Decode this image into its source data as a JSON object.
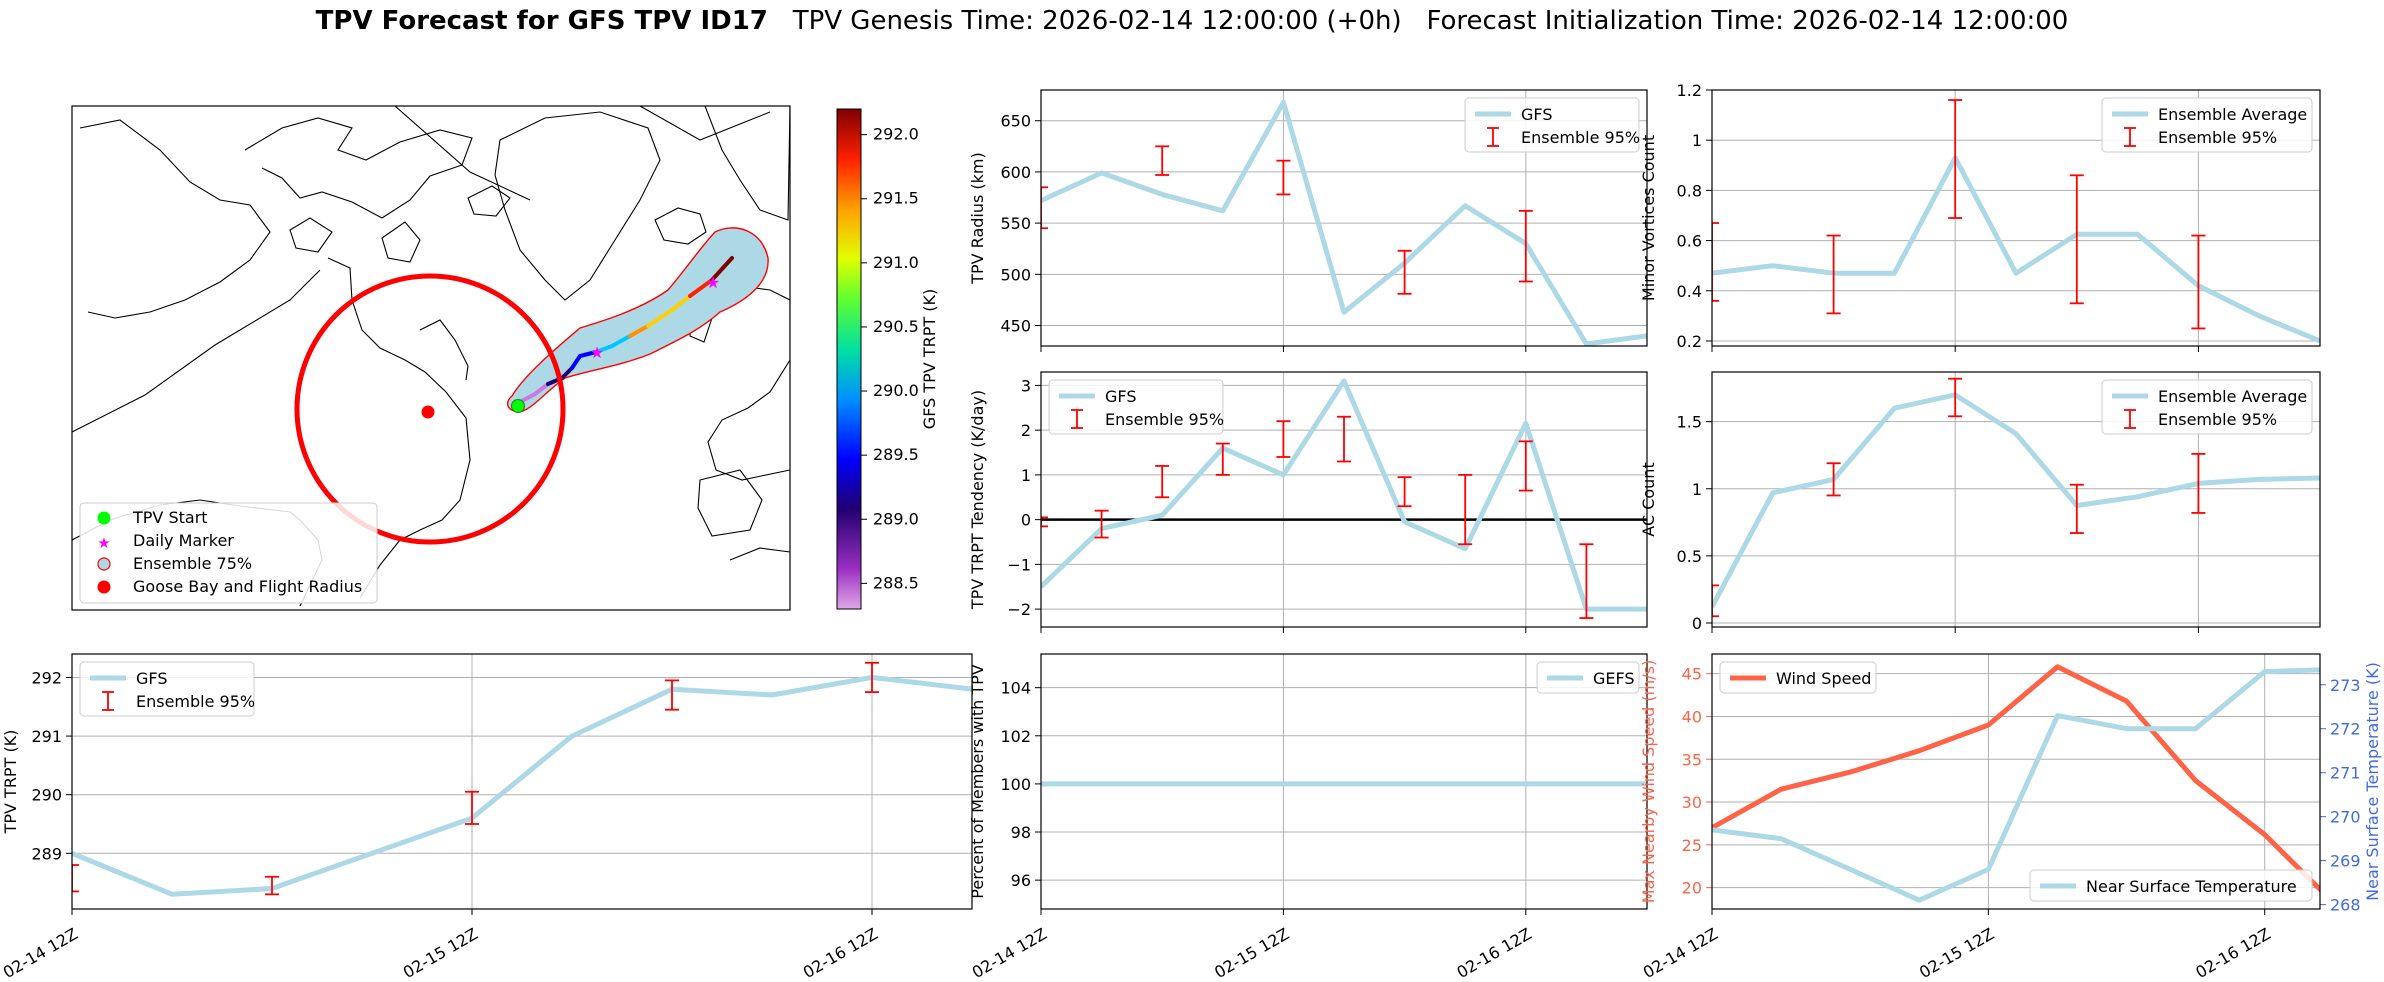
{
  "header": {
    "title_bold": "TPV Forecast for GFS TPV ID17",
    "genesis": "TPV Genesis Time: 2026-02-14 12:00:00 (+0h)",
    "init": "Forecast Initialization Time: 2026-02-14 12:00:00"
  },
  "colors": {
    "lightblue": "#add8e6",
    "red": "#ff0000",
    "tomato": "#ff6347",
    "royalblue": "#4169e1",
    "magenta": "#ff00ff",
    "lime": "#00ff00"
  },
  "map": {
    "legend": [
      "TPV Start",
      "Daily Marker",
      "Ensemble 75%",
      "Goose Bay and Flight Radius"
    ],
    "colorbar": {
      "label": "GFS TPV TRPT (K)",
      "min": 288.3,
      "max": 292.2,
      "ticks": [
        "288.5",
        "289.0",
        "289.5",
        "290.0",
        "290.5",
        "291.0",
        "291.5",
        "292.0"
      ]
    }
  },
  "x_tick_labels": [
    "02-14 12Z",
    "02-15 12Z",
    "02-16 12Z"
  ],
  "chart_data": [
    {
      "id": "radius",
      "type": "line",
      "ylabel": "TPV Radius (km)",
      "ylim": [
        430,
        680
      ],
      "yticks": [
        450,
        500,
        550,
        600,
        650
      ],
      "xticks": [
        0,
        4,
        8
      ],
      "show_xlabels": false,
      "xlim": [
        0,
        10
      ],
      "legend_pos": "top-right",
      "legend": [
        "GFS",
        "Ensemble 95%"
      ],
      "series": [
        {
          "name": "GFS",
          "color": "#add8e6",
          "x": [
            0,
            1,
            2,
            3,
            4,
            5,
            6,
            7,
            8,
            9,
            10
          ],
          "values": [
            572,
            599,
            578,
            562,
            668,
            463,
            511,
            567,
            530,
            432,
            440
          ]
        }
      ],
      "errorbars": [
        {
          "x": 0,
          "lo": 545,
          "hi": 585
        },
        {
          "x": 2,
          "lo": 597,
          "hi": 625
        },
        {
          "x": 4,
          "lo": 578,
          "hi": 611
        },
        {
          "x": 6,
          "lo": 481,
          "hi": 523
        },
        {
          "x": 8,
          "lo": 493,
          "hi": 562
        }
      ]
    },
    {
      "id": "minor",
      "type": "line",
      "ylabel": "Minor Vortices Count",
      "ylim": [
        0.18,
        1.2
      ],
      "yticks": [
        0.2,
        0.4,
        0.6,
        0.8,
        1.0,
        1.2
      ],
      "xticks": [
        0,
        4,
        8
      ],
      "show_xlabels": false,
      "xlim": [
        0,
        10
      ],
      "legend_pos": "top-right",
      "legend": [
        "Ensemble Average",
        "Ensemble 95%"
      ],
      "series": [
        {
          "name": "Ensemble Average",
          "color": "#add8e6",
          "x": [
            0,
            1,
            2,
            3,
            4,
            5,
            6,
            7,
            8,
            9,
            10
          ],
          "values": [
            0.47,
            0.5,
            0.47,
            0.47,
            0.93,
            0.47,
            0.625,
            0.625,
            0.42,
            0.3,
            0.2
          ]
        }
      ],
      "errorbars": [
        {
          "x": 0,
          "lo": 0.36,
          "hi": 0.67
        },
        {
          "x": 2,
          "lo": 0.31,
          "hi": 0.62
        },
        {
          "x": 4,
          "lo": 0.69,
          "hi": 1.16
        },
        {
          "x": 6,
          "lo": 0.35,
          "hi": 0.86
        },
        {
          "x": 8,
          "lo": 0.25,
          "hi": 0.62
        }
      ]
    },
    {
      "id": "tendency",
      "type": "line",
      "ylabel": "TPV TRPT Tendency (K/day)",
      "ylim": [
        -2.4,
        3.3
      ],
      "yticks": [
        -2,
        -1,
        0,
        1,
        2,
        3
      ],
      "xticks": [
        0,
        4,
        8
      ],
      "show_xlabels": false,
      "xlim": [
        0,
        10
      ],
      "zero_line": true,
      "legend_pos": "top-left",
      "legend": [
        "GFS",
        "Ensemble 95%"
      ],
      "series": [
        {
          "name": "GFS",
          "color": "#add8e6",
          "x": [
            0,
            1,
            2,
            3,
            4,
            5,
            6,
            7,
            8,
            9,
            10
          ],
          "values": [
            -1.5,
            -0.2,
            0.1,
            1.6,
            1.0,
            3.1,
            -0.05,
            -0.65,
            2.15,
            -2.0,
            -2.0
          ]
        }
      ],
      "errorbars": [
        {
          "x": 0,
          "lo": -0.15,
          "hi": 0.05
        },
        {
          "x": 1,
          "lo": -0.4,
          "hi": 0.2
        },
        {
          "x": 2,
          "lo": 0.5,
          "hi": 1.2
        },
        {
          "x": 3,
          "lo": 1.0,
          "hi": 1.7
        },
        {
          "x": 4,
          "lo": 1.4,
          "hi": 2.2
        },
        {
          "x": 5,
          "lo": 1.3,
          "hi": 2.3
        },
        {
          "x": 6,
          "lo": 0.3,
          "hi": 0.95
        },
        {
          "x": 7,
          "lo": -0.55,
          "hi": 1.0
        },
        {
          "x": 8,
          "lo": 0.65,
          "hi": 1.75
        },
        {
          "x": 9,
          "lo": -2.2,
          "hi": -0.55
        }
      ]
    },
    {
      "id": "ac",
      "type": "line",
      "ylabel": "AC Count",
      "ylim": [
        -0.03,
        1.87
      ],
      "yticks": [
        0.0,
        0.5,
        1.0,
        1.5
      ],
      "xticks": [
        0,
        4,
        8
      ],
      "show_xlabels": false,
      "xlim": [
        0,
        10
      ],
      "legend_pos": "top-right",
      "legend": [
        "Ensemble Average",
        "Ensemble 95%"
      ],
      "series": [
        {
          "name": "Ensemble Average",
          "color": "#add8e6",
          "x": [
            0,
            1,
            2,
            3,
            4,
            5,
            6,
            7,
            8,
            9,
            10
          ],
          "values": [
            0.12,
            0.97,
            1.07,
            1.6,
            1.7,
            1.41,
            0.875,
            0.94,
            1.04,
            1.07,
            1.08
          ]
        }
      ],
      "errorbars": [
        {
          "x": 0,
          "lo": 0.05,
          "hi": 0.28
        },
        {
          "x": 2,
          "lo": 0.95,
          "hi": 1.19
        },
        {
          "x": 4,
          "lo": 1.54,
          "hi": 1.82
        },
        {
          "x": 6,
          "lo": 0.67,
          "hi": 1.03
        },
        {
          "x": 8,
          "lo": 0.82,
          "hi": 1.26
        }
      ]
    },
    {
      "id": "trpt",
      "type": "line",
      "ylabel": "TPV TRPT (K)",
      "ylim": [
        288.05,
        292.4
      ],
      "yticks": [
        289,
        290,
        291,
        292
      ],
      "xticks": [
        0,
        4,
        8
      ],
      "show_xlabels": true,
      "xlim": [
        0,
        9
      ],
      "legend_pos": "top-left",
      "legend": [
        "GFS",
        "Ensemble 95%"
      ],
      "series": [
        {
          "name": "GFS",
          "color": "#add8e6",
          "x": [
            0,
            1,
            2,
            3,
            4,
            5,
            6,
            7,
            8,
            9
          ],
          "values": [
            289.0,
            288.3,
            288.4,
            289.0,
            289.6,
            291.0,
            291.8,
            291.7,
            292.0,
            291.8
          ]
        }
      ],
      "errorbars": [
        {
          "x": 0,
          "lo": 288.35,
          "hi": 288.8
        },
        {
          "x": 2,
          "lo": 288.3,
          "hi": 288.6
        },
        {
          "x": 4,
          "lo": 289.5,
          "hi": 290.05
        },
        {
          "x": 6,
          "lo": 291.45,
          "hi": 291.95
        },
        {
          "x": 8,
          "lo": 291.75,
          "hi": 292.25
        }
      ]
    },
    {
      "id": "percent",
      "type": "line",
      "ylabel": "Percent of Members with TPV",
      "ylim": [
        94.8,
        105.4
      ],
      "yticks": [
        96,
        98,
        100,
        102,
        104
      ],
      "xticks": [
        0,
        4,
        8
      ],
      "show_xlabels": true,
      "xlim": [
        0,
        10
      ],
      "legend_pos": "top-right",
      "legend": [
        "GEFS"
      ],
      "series": [
        {
          "name": "GEFS",
          "color": "#add8e6",
          "x": [
            0,
            1,
            2,
            3,
            4,
            5,
            6,
            7,
            8,
            9,
            10
          ],
          "values": [
            100,
            100,
            100,
            100,
            100,
            100,
            100,
            100,
            100,
            100,
            100
          ]
        }
      ],
      "errorbars": []
    },
    {
      "id": "wind",
      "type": "line",
      "ylabel": "Max Nearby Wind Speed (m/s)",
      "ylim": [
        17.5,
        47.3
      ],
      "yticks": [
        20,
        25,
        30,
        35,
        40,
        45
      ],
      "ylabel2": "Near Surface Temperature (K)",
      "ylim2": [
        267.9,
        273.7
      ],
      "yticks2": [
        268,
        269,
        270,
        271,
        272,
        273
      ],
      "xticks": [
        0,
        4,
        8
      ],
      "show_xlabels": true,
      "xlim": [
        0,
        8.8
      ],
      "legend_wind": "Wind Speed",
      "legend_temp": "Near Surface Temperature",
      "series": [
        {
          "name": "Wind Speed",
          "color": "#ff6347",
          "axis": "left",
          "x": [
            0,
            1,
            2,
            3,
            4,
            5,
            6,
            7,
            8,
            9
          ],
          "values": [
            27,
            31.5,
            33.5,
            36,
            39,
            45.8,
            41.8,
            32.5,
            26.2,
            18.2
          ]
        },
        {
          "name": "Near Surface Temperature",
          "color": "#add8e6",
          "axis": "right",
          "x": [
            0,
            1,
            2,
            3,
            4,
            5,
            6,
            7,
            8,
            9
          ],
          "values": [
            269.7,
            269.5,
            268.8,
            268.1,
            268.8,
            272.3,
            272.0,
            272.0,
            273.3,
            273.35
          ]
        }
      ],
      "errorbars": []
    }
  ]
}
